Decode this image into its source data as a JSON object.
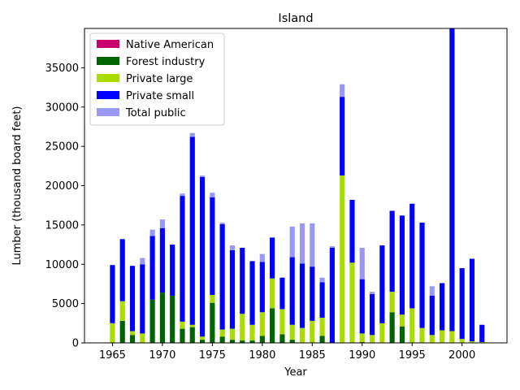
{
  "chart_data": {
    "type": "bar",
    "stacked": true,
    "title": "Island",
    "xlabel": "Year",
    "ylabel": "Lumber (thousand board feet)",
    "xlim": [
      1962.2,
      2004.5
    ],
    "ylim": [
      0,
      40000
    ],
    "xticks": [
      1965,
      1970,
      1975,
      1980,
      1985,
      1990,
      1995,
      2000
    ],
    "yticks": [
      0,
      5000,
      10000,
      15000,
      20000,
      25000,
      30000,
      35000
    ],
    "legend_position": "upper-left",
    "x": [
      1965,
      1966,
      1967,
      1968,
      1969,
      1970,
      1971,
      1972,
      1973,
      1974,
      1975,
      1976,
      1977,
      1978,
      1979,
      1980,
      1981,
      1982,
      1983,
      1984,
      1985,
      1986,
      1987,
      1988,
      1989,
      1990,
      1991,
      1992,
      1993,
      1994,
      1995,
      1996,
      1997,
      1998,
      1999,
      2000,
      2001,
      2002
    ],
    "series": [
      {
        "name": "Native American",
        "color": "#c8006e",
        "values": [
          0,
          0,
          0,
          0,
          0,
          0,
          0,
          0,
          0,
          0,
          0,
          0,
          0,
          0,
          0,
          0,
          0,
          0,
          0,
          0,
          0,
          0,
          0,
          0,
          0,
          0,
          0,
          0,
          0,
          0,
          0,
          0,
          0,
          0,
          0,
          0,
          0,
          0
        ]
      },
      {
        "name": "Forest industry",
        "color": "#006400",
        "values": [
          0,
          2800,
          1000,
          0,
          5500,
          6400,
          6000,
          1800,
          2000,
          400,
          5100,
          800,
          400,
          300,
          300,
          900,
          4400,
          1100,
          400,
          0,
          0,
          900,
          0,
          0,
          0,
          100,
          0,
          0,
          3900,
          2100,
          0,
          0,
          0,
          0,
          0,
          0,
          0,
          0
        ]
      },
      {
        "name": "Private large",
        "color": "#aadc00",
        "values": [
          2500,
          2500,
          500,
          1200,
          0,
          0,
          0,
          900,
          300,
          400,
          1000,
          900,
          1400,
          3400,
          2000,
          3000,
          3800,
          3200,
          1900,
          1900,
          2800,
          2300,
          0,
          21300,
          10200,
          1100,
          1000,
          2500,
          2600,
          1500,
          4400,
          1900,
          1000,
          1600,
          1500,
          500,
          200,
          100
        ]
      },
      {
        "name": "Private small",
        "color": "#0000ff",
        "values": [
          7400,
          7900,
          8300,
          8800,
          8100,
          8200,
          6500,
          16000,
          23900,
          20300,
          12400,
          13400,
          10000,
          8400,
          8100,
          6400,
          5200,
          4000,
          8600,
          8200,
          6900,
          4500,
          12100,
          10000,
          8000,
          6900,
          5200,
          9900,
          10300,
          12600,
          13300,
          13400,
          5000,
          6000,
          38500,
          9000,
          10500,
          2200
        ]
      },
      {
        "name": "Total public",
        "color": "#9999f5",
        "values": [
          0,
          0,
          0,
          800,
          800,
          1100,
          0,
          300,
          500,
          200,
          600,
          200,
          600,
          0,
          0,
          1000,
          0,
          0,
          3900,
          5100,
          5500,
          600,
          200,
          1600,
          0,
          4000,
          300,
          0,
          0,
          0,
          0,
          0,
          1200,
          0,
          0,
          0,
          0,
          0
        ]
      }
    ]
  }
}
